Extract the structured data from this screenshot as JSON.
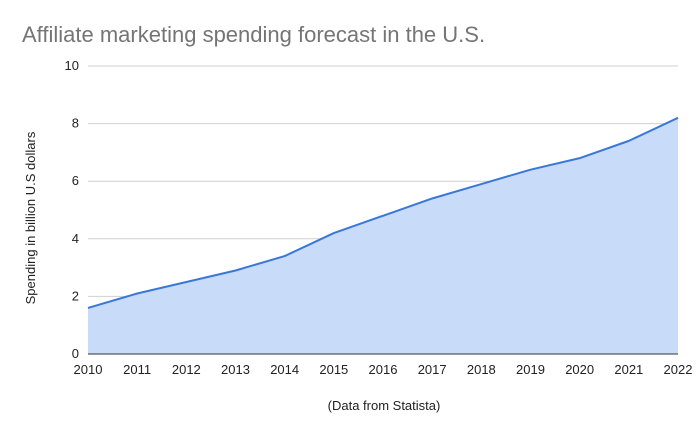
{
  "chart_data": {
    "type": "area",
    "title": "Affiliate marketing spending forecast in the U.S.",
    "xlabel": "(Data from Statista)",
    "ylabel": "Spending in billion U.S dollars",
    "categories": [
      "2010",
      "2011",
      "2012",
      "2013",
      "2014",
      "2015",
      "2016",
      "2017",
      "2018",
      "2019",
      "2020",
      "2021",
      "2022"
    ],
    "series": [
      {
        "values": [
          1.6,
          2.1,
          2.5,
          2.9,
          3.4,
          4.2,
          4.8,
          5.4,
          5.9,
          6.4,
          6.8,
          7.4,
          8.2
        ]
      }
    ],
    "ylim": [
      0,
      10
    ],
    "yticks": [
      "0",
      "2",
      "4",
      "6",
      "8",
      "10"
    ],
    "grid": true,
    "legend": "none",
    "colors": {
      "line": "#3a78d8",
      "fill": "#c8dbf8",
      "grid": "#d0d0d0",
      "title": "#757575"
    }
  }
}
